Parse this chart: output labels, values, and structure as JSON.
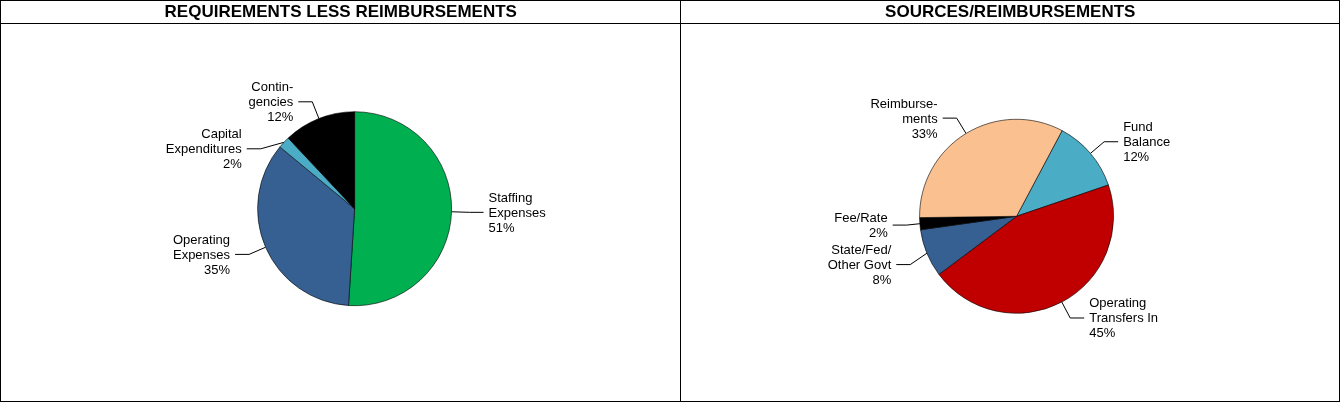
{
  "chart_data": [
    {
      "type": "pie",
      "title": "REQUIREMENTS LESS REIMBURSEMENTS",
      "categories": [
        "Staffing\nExpenses",
        "Operating\nExpenses",
        "Capital\nExpenditures",
        "Contin-\ngencies"
      ],
      "values": [
        51,
        35,
        2,
        12
      ],
      "value_labels": [
        "51%",
        "35%",
        "2%",
        "12%"
      ],
      "colors": [
        "#00b050",
        "#376092",
        "#4bacc6",
        "#000000"
      ],
      "legend": false
    },
    {
      "type": "pie",
      "title": "SOURCES/REIMBURSEMENTS",
      "categories": [
        "Fund\nBalance",
        "Operating\nTransfers In",
        "State/Fed/\nOther Govt",
        "Fee/Rate",
        "Reimburse-\nments"
      ],
      "values": [
        12,
        45,
        8,
        2,
        33
      ],
      "value_labels": [
        "12%",
        "45%",
        "8%",
        "2%",
        "33%"
      ],
      "colors": [
        "#4bacc6",
        "#c00000",
        "#376092",
        "#000000",
        "#fac090"
      ],
      "legend": false
    }
  ]
}
